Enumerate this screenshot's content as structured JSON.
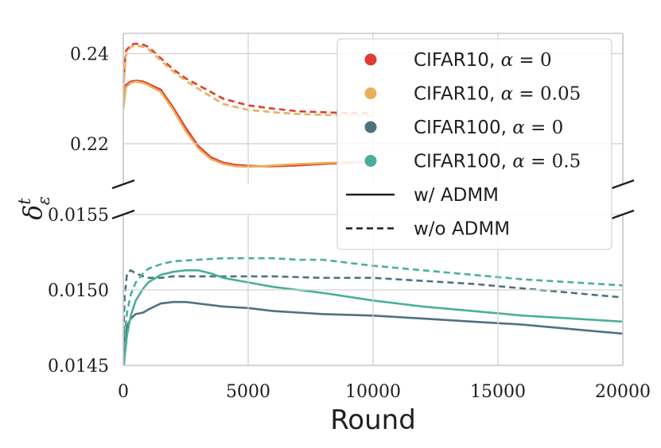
{
  "chart_data": {
    "type": "line",
    "title": "",
    "xlabel": "Round",
    "ylabel": "δ",
    "ylabel_sup": "t",
    "ylabel_sub": "ε",
    "xlim": [
      0,
      20000
    ],
    "xticks": [
      0,
      5000,
      10000,
      15000,
      20000
    ],
    "xtick_labels": [
      "0",
      "5000",
      "10000",
      "15000",
      "20000"
    ],
    "broken_axis": true,
    "legend_position": "top-right",
    "grid": true,
    "panels": [
      {
        "name": "upper",
        "ylim": [
          0.211,
          0.2445
        ],
        "yticks": [
          0.22,
          0.24
        ],
        "ytick_labels": [
          "0.22",
          "0.24"
        ]
      },
      {
        "name": "lower",
        "ylim": [
          0.0145,
          0.0155
        ],
        "yticks": [
          0.0145,
          0.015,
          0.0155
        ],
        "ytick_labels": [
          "0.0145",
          "0.0150",
          "0.0155"
        ]
      }
    ],
    "series": [
      {
        "name": "CIFAR10, α = 0, w/ ADMM",
        "color": "#e03c31",
        "style": "solid",
        "panel": "upper",
        "x": [
          0,
          100,
          300,
          500,
          800,
          1000,
          1500,
          2000,
          2500,
          3000,
          3500,
          4000,
          4500,
          5000,
          5500,
          6000,
          7000,
          8000,
          9000,
          10000
        ],
        "y": [
          0.2285,
          0.233,
          0.2338,
          0.234,
          0.2338,
          0.2333,
          0.232,
          0.228,
          0.2235,
          0.2195,
          0.217,
          0.2158,
          0.2153,
          0.2151,
          0.215,
          0.215,
          0.2152,
          0.2155,
          0.2158,
          0.216
        ]
      },
      {
        "name": "CIFAR10, α = 0, w/o ADMM",
        "color": "#e03c31",
        "style": "dashed",
        "panel": "upper",
        "x": [
          0,
          100,
          300,
          500,
          800,
          1000,
          1500,
          2000,
          2500,
          3000,
          3500,
          4000,
          5000,
          6000,
          7000,
          8000,
          9000,
          10000
        ],
        "y": [
          0.2335,
          0.2405,
          0.242,
          0.2422,
          0.242,
          0.2415,
          0.239,
          0.2365,
          0.2345,
          0.233,
          0.2315,
          0.23,
          0.2285,
          0.2278,
          0.2272,
          0.227,
          0.2268,
          0.2268
        ]
      },
      {
        "name": "CIFAR10, α = 0.05, w/ ADMM",
        "color": "#e8b05a",
        "style": "solid",
        "panel": "upper",
        "x": [
          0,
          100,
          300,
          500,
          800,
          1000,
          1500,
          2000,
          2500,
          3000,
          3500,
          4000,
          4500,
          5000,
          5500,
          6000,
          7000,
          8000,
          9000,
          10000
        ],
        "y": [
          0.2275,
          0.2325,
          0.2335,
          0.2338,
          0.2335,
          0.233,
          0.2315,
          0.2275,
          0.2228,
          0.219,
          0.2166,
          0.2155,
          0.215,
          0.2149,
          0.215,
          0.2152,
          0.2155,
          0.2157,
          0.2159,
          0.216
        ]
      },
      {
        "name": "CIFAR10, α = 0.05, w/o ADMM",
        "color": "#e8b05a",
        "style": "dashed",
        "panel": "upper",
        "x": [
          0,
          100,
          300,
          500,
          800,
          1000,
          1500,
          2000,
          2500,
          3000,
          3500,
          4000,
          5000,
          6000,
          7000,
          8000,
          9000,
          10000
        ],
        "y": [
          0.232,
          0.2395,
          0.2415,
          0.2418,
          0.2415,
          0.241,
          0.2385,
          0.236,
          0.234,
          0.2322,
          0.2305,
          0.2288,
          0.2275,
          0.227,
          0.2266,
          0.2264,
          0.2263,
          0.2262
        ]
      },
      {
        "name": "CIFAR100, α = 0, w/ ADMM",
        "color": "#4f7180",
        "style": "solid",
        "panel": "lower",
        "x": [
          0,
          50,
          150,
          300,
          500,
          800,
          1000,
          1500,
          2000,
          2500,
          3000,
          4000,
          5000,
          6000,
          7000,
          8000,
          10000,
          12000,
          14000,
          16000,
          18000,
          20000
        ],
        "y": [
          0.01455,
          0.01468,
          0.01476,
          0.01481,
          0.01484,
          0.01485,
          0.01487,
          0.01491,
          0.01492,
          0.01492,
          0.01491,
          0.01489,
          0.01488,
          0.01486,
          0.01485,
          0.01484,
          0.01483,
          0.01481,
          0.01479,
          0.01477,
          0.01474,
          0.01471
        ]
      },
      {
        "name": "CIFAR100, α = 0, w/o ADMM",
        "color": "#4f7180",
        "style": "dashed",
        "panel": "lower",
        "x": [
          0,
          50,
          150,
          300,
          500,
          800,
          1000,
          1500,
          2000,
          3000,
          4000,
          5000,
          6000,
          8000,
          10000,
          12000,
          14000,
          16000,
          18000,
          20000
        ],
        "y": [
          0.01465,
          0.01495,
          0.01511,
          0.01513,
          0.01511,
          0.01509,
          0.01508,
          0.01508,
          0.01509,
          0.01509,
          0.01509,
          0.01509,
          0.01509,
          0.01508,
          0.01508,
          0.01506,
          0.01504,
          0.01501,
          0.01498,
          0.01495
        ]
      },
      {
        "name": "CIFAR100, α = 0.5, w/ ADMM",
        "color": "#4aaf99",
        "style": "solid",
        "panel": "lower",
        "x": [
          0,
          50,
          150,
          300,
          500,
          800,
          1000,
          1500,
          2000,
          2500,
          3000,
          3500,
          4000,
          5000,
          6000,
          7000,
          8000,
          10000,
          12000,
          14000,
          16000,
          18000,
          20000
        ],
        "y": [
          0.01445,
          0.01455,
          0.0147,
          0.01483,
          0.01493,
          0.01501,
          0.01505,
          0.0151,
          0.01512,
          0.01513,
          0.01513,
          0.01511,
          0.01508,
          0.01505,
          0.01502,
          0.015,
          0.01498,
          0.01493,
          0.01489,
          0.01486,
          0.01483,
          0.01481,
          0.01479
        ]
      },
      {
        "name": "CIFAR100, α = 0.5, w/o ADMM",
        "color": "#4aaf99",
        "style": "dashed",
        "panel": "lower",
        "x": [
          0,
          50,
          150,
          300,
          500,
          800,
          1000,
          1500,
          2000,
          3000,
          4000,
          5000,
          6000,
          7000,
          8000,
          10000,
          12000,
          14000,
          16000,
          18000,
          20000
        ],
        "y": [
          0.01455,
          0.0147,
          0.01485,
          0.01497,
          0.01505,
          0.01511,
          0.01514,
          0.01517,
          0.01519,
          0.0152,
          0.01521,
          0.01521,
          0.01521,
          0.0152,
          0.0152,
          0.01516,
          0.01513,
          0.0151,
          0.01507,
          0.01505,
          0.01503
        ]
      }
    ],
    "legend": {
      "entries": [
        {
          "kind": "marker",
          "color": "#e03c31",
          "label": "CIFAR10, ",
          "alpha": "α",
          "value": " = 0"
        },
        {
          "kind": "marker",
          "color": "#e8b05a",
          "label": "CIFAR10, ",
          "alpha": "α",
          "value": " = 0.05"
        },
        {
          "kind": "marker",
          "color": "#4f7180",
          "label": "CIFAR100, ",
          "alpha": "α",
          "value": " = 0"
        },
        {
          "kind": "marker",
          "color": "#4aaf99",
          "label": "CIFAR100, ",
          "alpha": "α",
          "value": " = 0.5"
        },
        {
          "kind": "line",
          "color": "#1f1f1f",
          "style": "solid",
          "label": "w/ ADMM"
        },
        {
          "kind": "line",
          "color": "#1f1f1f",
          "style": "dashed",
          "label": "w/o ADMM"
        }
      ]
    }
  }
}
